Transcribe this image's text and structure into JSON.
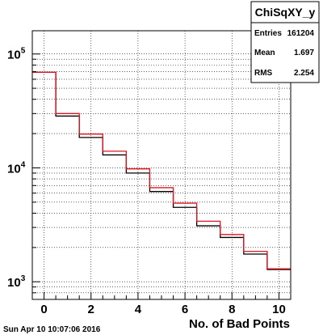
{
  "chart_data": {
    "type": "histogram-step",
    "title": "",
    "xlabel": "No. of Bad Points",
    "ylabel": "",
    "xlim": [
      -0.5,
      10.5
    ],
    "ylim": [
      700,
      160000
    ],
    "log_y": true,
    "grid": true,
    "x_bin_edges": [
      -0.5,
      0.5,
      1.5,
      2.5,
      3.5,
      4.5,
      5.5,
      6.5,
      7.5,
      8.5,
      9.5,
      10.5
    ],
    "x_ticks": [
      "0",
      "2",
      "4",
      "6",
      "8",
      "10"
    ],
    "y_ticks": [
      {
        "value": 1000,
        "base": "10",
        "exp": "3"
      },
      {
        "value": 10000,
        "base": "10",
        "exp": "4"
      },
      {
        "value": 100000,
        "base": "10",
        "exp": "5"
      }
    ],
    "series": [
      {
        "color": "#000000",
        "values": [
          69000,
          28500,
          18500,
          13000,
          9000,
          6200,
          4500,
          3100,
          2450,
          1750,
          1280
        ]
      },
      {
        "color": "#e0141e",
        "values": [
          69000,
          30000,
          19800,
          14000,
          9800,
          6700,
          4900,
          3400,
          2600,
          1850,
          1300
        ]
      }
    ]
  },
  "stats": {
    "title": "ChiSqXY_y",
    "rows": [
      {
        "label": "Entries",
        "value": "161204"
      },
      {
        "label": "Mean",
        "value": "1.697"
      },
      {
        "label": "RMS",
        "value": "2.254"
      }
    ]
  },
  "footer": {
    "date": "Sun Apr 10 10:07:06 2016"
  }
}
